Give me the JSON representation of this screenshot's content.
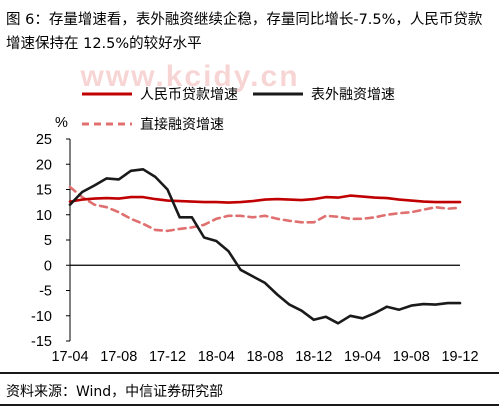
{
  "title": "图 6：存量增速看，表外融资继续企稳，存量同比增长-7.5%，人民币贷款增速保持在 12.5%的较好水平",
  "watermark": "www.kcidy.cn",
  "source": "资料来源：Wind，中信证券研究部",
  "chart_data": {
    "type": "line",
    "ylabel": "%",
    "ylim": [
      -15,
      25
    ],
    "yticks": [
      25,
      20,
      15,
      10,
      5,
      0,
      -5,
      -10,
      -15
    ],
    "xlim": [
      0,
      32
    ],
    "xticks": [
      {
        "label": "17-04",
        "i": 0
      },
      {
        "label": "17-08",
        "i": 4
      },
      {
        "label": "17-12",
        "i": 8
      },
      {
        "label": "18-04",
        "i": 12
      },
      {
        "label": "18-08",
        "i": 16
      },
      {
        "label": "18-12",
        "i": 20
      },
      {
        "label": "19-04",
        "i": 24
      },
      {
        "label": "19-08",
        "i": 28
      },
      {
        "label": "19-12",
        "i": 32
      }
    ],
    "legend_position": "top",
    "series": [
      {
        "name": "人民币贷款增速",
        "color": "#c00000",
        "dash": "solid",
        "values": [
          12.6,
          13.0,
          13.2,
          13.3,
          13.2,
          13.5,
          13.5,
          13.1,
          12.8,
          12.7,
          12.6,
          12.5,
          12.5,
          12.4,
          12.5,
          12.7,
          13.0,
          13.1,
          13.0,
          12.9,
          13.1,
          13.5,
          13.4,
          13.8,
          13.6,
          13.4,
          13.3,
          13.0,
          12.8,
          12.6,
          12.5,
          12.5,
          12.5
        ]
      },
      {
        "name": "表外融资增速",
        "color": "#1a1a1a",
        "dash": "solid",
        "values": [
          12.0,
          14.5,
          15.8,
          17.2,
          17.0,
          18.7,
          19.0,
          17.5,
          15.0,
          9.5,
          9.5,
          5.5,
          4.8,
          2.8,
          -0.9,
          -2.2,
          -3.5,
          -5.8,
          -7.8,
          -9.0,
          -10.8,
          -10.2,
          -11.5,
          -10.0,
          -10.5,
          -9.5,
          -8.2,
          -8.8,
          -8.0,
          -7.7,
          -7.8,
          -7.5,
          -7.5
        ]
      },
      {
        "name": "直接融资增速",
        "color": "#e07070",
        "dash": "dashed",
        "values": [
          15.5,
          13.5,
          12.0,
          11.5,
          10.5,
          9.2,
          8.2,
          7.0,
          6.8,
          7.2,
          7.5,
          8.0,
          9.2,
          9.8,
          9.8,
          9.5,
          9.8,
          9.2,
          8.8,
          8.5,
          8.5,
          9.8,
          9.6,
          9.2,
          9.2,
          9.5,
          10.0,
          10.3,
          10.5,
          11.0,
          11.5,
          11.2,
          11.4
        ]
      }
    ]
  }
}
